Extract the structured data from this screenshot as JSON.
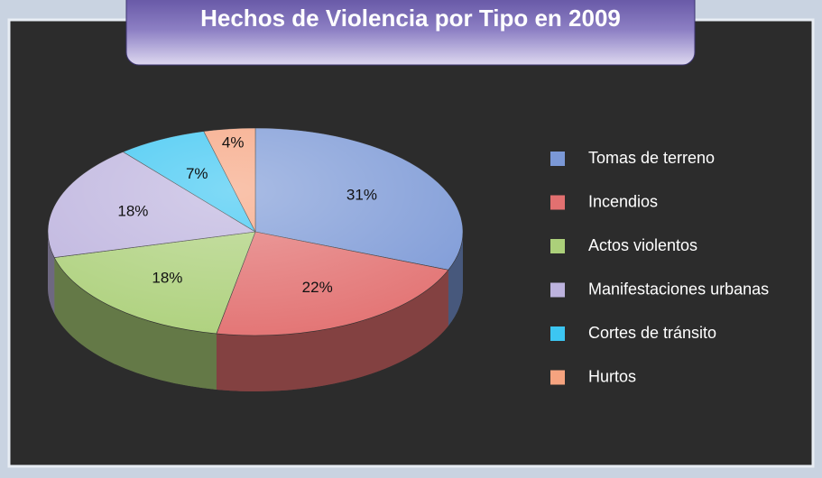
{
  "chart_data": {
    "type": "pie",
    "title": "Hechos de Violencia por Tipo en 2009",
    "categories": [
      "Tomas de terreno",
      "Incendios",
      "Actos violentos",
      "Manifestaciones urbanas",
      "Cortes de tránsito",
      "Hurtos"
    ],
    "values": [
      31,
      22,
      18,
      18,
      7,
      4
    ],
    "value_labels": [
      "31%",
      "22%",
      "18%",
      "18%",
      "7%",
      "4%"
    ],
    "colors": [
      "#7b98d6",
      "#e27070",
      "#acd07a",
      "#bdb3de",
      "#3cc6f2",
      "#f6a37f"
    ],
    "legend": "right"
  }
}
